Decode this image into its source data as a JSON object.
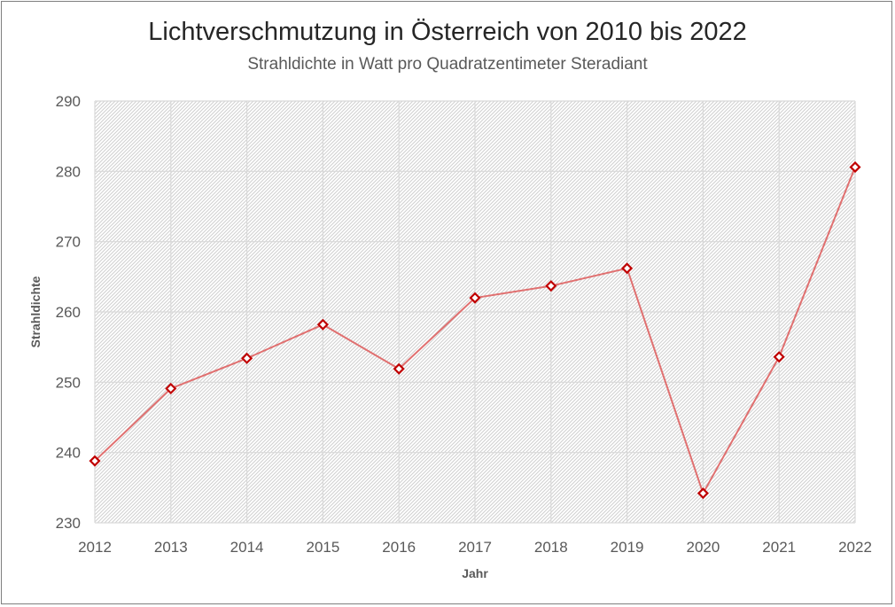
{
  "chart_data": {
    "type": "line",
    "title": "Lichtverschmutzung in Österreich von 2010 bis 2022",
    "subtitle": "Strahldichte in Watt pro Quadratzentimeter Steradiant",
    "xlabel": "Jahr",
    "ylabel": "Strahldichte",
    "x": [
      "2012",
      "2013",
      "2014",
      "2015",
      "2016",
      "2017",
      "2018",
      "2019",
      "2020",
      "2021",
      "2022"
    ],
    "series": [
      {
        "values": [
          238.8,
          249.1,
          253.4,
          258.2,
          251.9,
          262.0,
          263.7,
          266.2,
          234.2,
          253.6,
          280.6
        ],
        "line_color": "#e07070",
        "marker_color": "#c00000"
      }
    ],
    "ylim": [
      230,
      290
    ],
    "yticks": [
      230,
      240,
      250,
      260,
      270,
      280,
      290
    ],
    "grid": true,
    "legend": "none"
  }
}
